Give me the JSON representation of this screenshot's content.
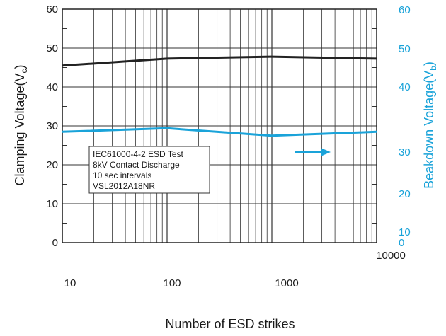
{
  "chart_data": {
    "type": "line",
    "title": "",
    "xlabel": "Number of ESD strikes",
    "ylabel_left_parts": [
      "Clamping Voltage(V",
      "c",
      ")"
    ],
    "ylabel_right_parts": [
      "Beakdown Voltage(V",
      "b",
      ")"
    ],
    "x_scale": "log",
    "xlim": [
      10,
      10000
    ],
    "x_ticks": [
      "10",
      "100",
      "1000",
      "10000"
    ],
    "ylim_left": [
      0,
      60
    ],
    "y_ticks_left": [
      "0",
      "10",
      "20",
      "30",
      "40",
      "50",
      "60"
    ],
    "ylim_right": [
      0,
      60
    ],
    "y_ticks_right": [
      "0",
      "10",
      "20",
      "30",
      "40",
      "50",
      "60"
    ],
    "grid": true,
    "series": [
      {
        "name": "",
        "axis": "left",
        "color": "#222222",
        "x": [
          10,
          100,
          1000,
          10000
        ],
        "y": [
          45.5,
          47.3,
          47.8,
          47.3
        ]
      },
      {
        "name": "",
        "axis": "left",
        "color": "#1aa3d9",
        "x": [
          10,
          100,
          1000,
          10000
        ],
        "y": [
          28.5,
          29.4,
          27.5,
          28.5
        ]
      }
    ],
    "annotation_lines": [
      "IEC61000-4-2 ESD Test",
      "8kV Contact Discharge",
      "10 sec intervals",
      "VSL2012A18NR"
    ],
    "arrow_direction": "right",
    "arrow_color": "#1aa3d9"
  }
}
